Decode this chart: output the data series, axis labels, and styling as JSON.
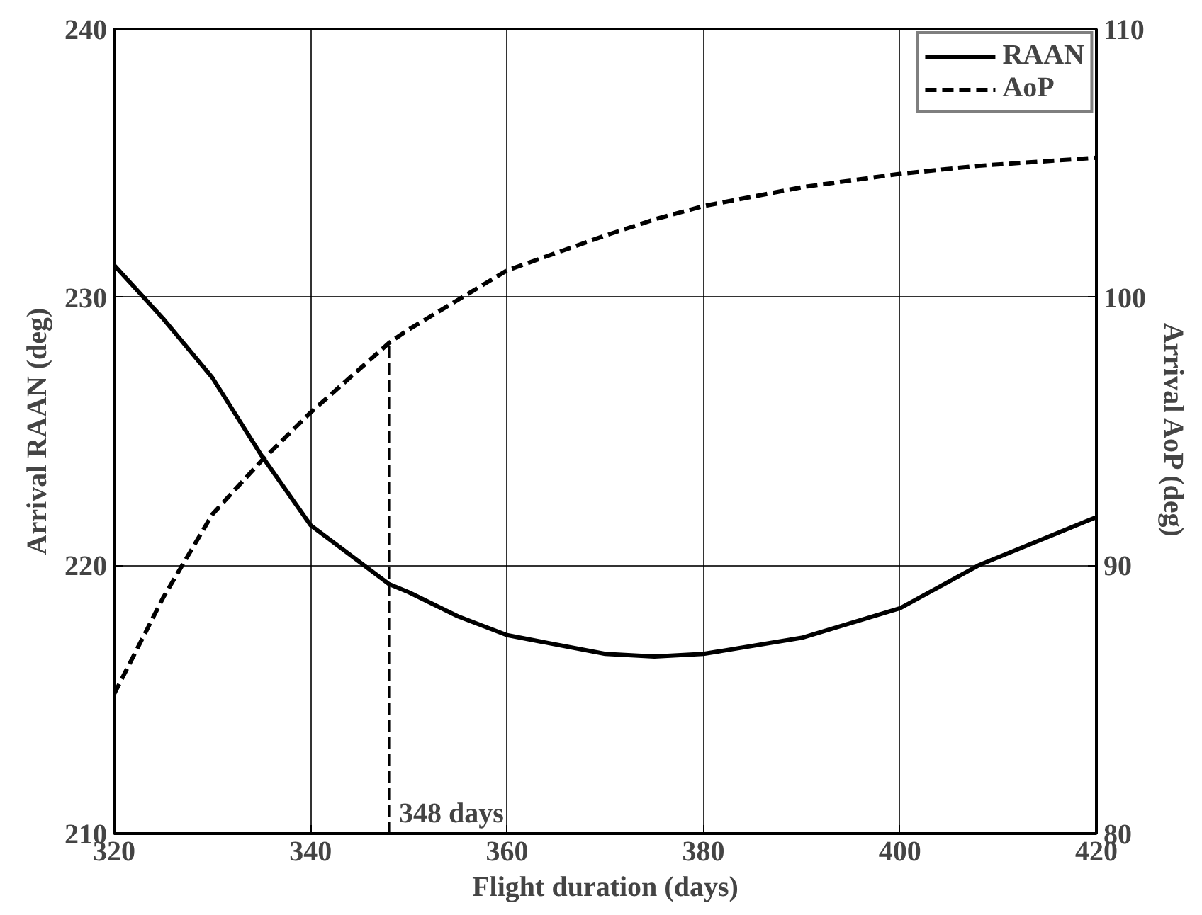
{
  "chart_data": {
    "type": "line",
    "xlabel": "Flight duration (days)",
    "ylabel": "Arrival RAAN (deg)",
    "y2label": "Arrival AoP (deg)",
    "x": [
      320,
      325,
      330,
      335,
      340,
      348,
      350,
      355,
      360,
      370,
      375,
      380,
      390,
      400,
      408,
      420
    ],
    "series": [
      {
        "name": "RAAN",
        "color": "#000000",
        "line_style": "solid",
        "values": [
          231.2,
          229.2,
          227.0,
          224.1,
          221.5,
          219.3,
          219.0,
          218.1,
          217.4,
          216.7,
          216.6,
          216.7,
          217.3,
          218.4,
          220.0,
          221.8
        ]
      },
      {
        "name": "AoP",
        "color": "#000000",
        "line_style": "dashed",
        "axis": "y2",
        "values": [
          85.2,
          88.8,
          91.9,
          93.9,
          95.7,
          98.3,
          98.8,
          99.9,
          101.0,
          102.3,
          102.9,
          103.4,
          104.1,
          104.6,
          104.9,
          105.2
        ]
      }
    ],
    "xlim": [
      320,
      420
    ],
    "xticks": [
      320,
      340,
      360,
      380,
      400,
      420
    ],
    "ylim": [
      210,
      240
    ],
    "yticks": [
      210,
      220,
      230,
      240
    ],
    "y2lim": [
      80,
      110
    ],
    "y2ticks": [
      80,
      90,
      100,
      110
    ],
    "ref_lines": [
      {
        "axis": "x",
        "value": 348,
        "label": "348 days",
        "line_style": "dashed",
        "color": "#000000"
      }
    ],
    "grid": true,
    "legend": "top right"
  }
}
